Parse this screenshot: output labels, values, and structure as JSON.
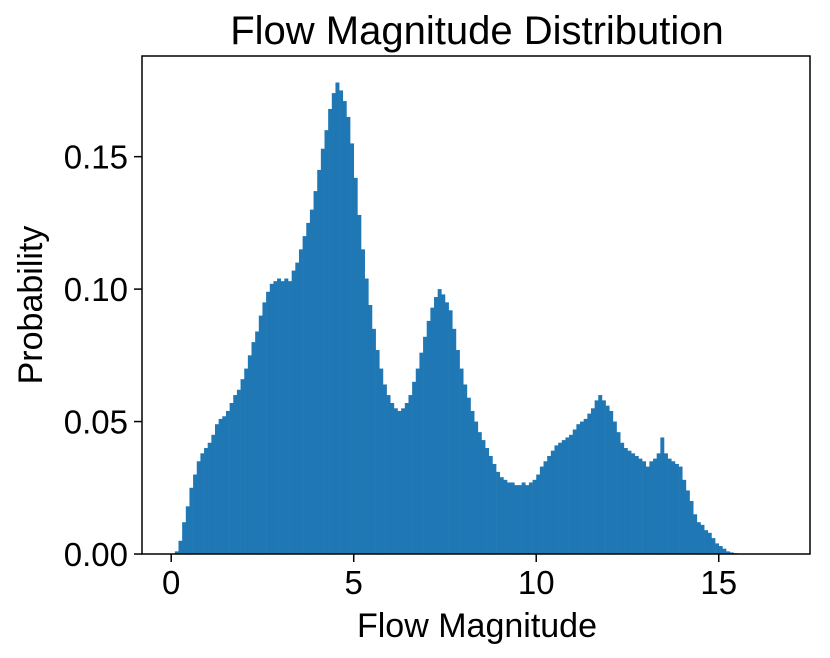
{
  "chart_data": {
    "type": "bar",
    "title": "Flow Magnitude Distribution",
    "xlabel": "Flow Magnitude",
    "ylabel": "Probability",
    "xlim": [
      -0.8,
      17.5
    ],
    "ylim": [
      0,
      0.188
    ],
    "xticks": [
      0,
      5,
      10,
      15
    ],
    "xtick_labels": [
      "0",
      "5",
      "10",
      "15"
    ],
    "yticks": [
      0,
      0.05,
      0.1,
      0.15
    ],
    "ytick_labels": [
      "0.00",
      "0.05",
      "0.10",
      "0.15"
    ],
    "grid": false,
    "bar_color": "#1f77b4",
    "bin_width": 0.1,
    "x": [
      0.0,
      0.1,
      0.2,
      0.3,
      0.4,
      0.5,
      0.6,
      0.7,
      0.8,
      0.9,
      1.0,
      1.1,
      1.2,
      1.3,
      1.4,
      1.5,
      1.6,
      1.7,
      1.8,
      1.9,
      2.0,
      2.1,
      2.2,
      2.3,
      2.4,
      2.5,
      2.6,
      2.7,
      2.8,
      2.9,
      3.0,
      3.1,
      3.2,
      3.3,
      3.4,
      3.5,
      3.6,
      3.7,
      3.8,
      3.9,
      4.0,
      4.1,
      4.2,
      4.3,
      4.4,
      4.5,
      4.6,
      4.7,
      4.8,
      4.9,
      5.0,
      5.1,
      5.2,
      5.3,
      5.4,
      5.5,
      5.6,
      5.7,
      5.8,
      5.9,
      6.0,
      6.1,
      6.2,
      6.3,
      6.4,
      6.5,
      6.6,
      6.7,
      6.8,
      6.9,
      7.0,
      7.1,
      7.2,
      7.3,
      7.4,
      7.5,
      7.6,
      7.7,
      7.8,
      7.9,
      8.0,
      8.1,
      8.2,
      8.3,
      8.4,
      8.5,
      8.6,
      8.7,
      8.8,
      8.9,
      9.0,
      9.1,
      9.2,
      9.3,
      9.4,
      9.5,
      9.6,
      9.7,
      9.8,
      9.9,
      10.0,
      10.1,
      10.2,
      10.3,
      10.4,
      10.5,
      10.6,
      10.7,
      10.8,
      10.9,
      11.0,
      11.1,
      11.2,
      11.3,
      11.4,
      11.5,
      11.6,
      11.7,
      11.8,
      11.9,
      12.0,
      12.1,
      12.2,
      12.3,
      12.4,
      12.5,
      12.6,
      12.7,
      12.8,
      12.9,
      13.0,
      13.1,
      13.2,
      13.3,
      13.4,
      13.5,
      13.6,
      13.7,
      13.8,
      13.9,
      14.0,
      14.1,
      14.2,
      14.3,
      14.4,
      14.5,
      14.6,
      14.7,
      14.8,
      14.9,
      15.0,
      15.1,
      15.2,
      15.3,
      15.4,
      15.5,
      15.6,
      15.7,
      15.8,
      15.9,
      16.0,
      16.1,
      16.2,
      16.3,
      16.4,
      16.5
    ],
    "values": [
      0.0,
      0.001,
      0.005,
      0.012,
      0.018,
      0.025,
      0.03,
      0.035,
      0.038,
      0.04,
      0.042,
      0.045,
      0.049,
      0.051,
      0.052,
      0.054,
      0.057,
      0.06,
      0.062,
      0.066,
      0.07,
      0.075,
      0.08,
      0.084,
      0.09,
      0.095,
      0.099,
      0.102,
      0.103,
      0.104,
      0.103,
      0.104,
      0.103,
      0.107,
      0.11,
      0.115,
      0.12,
      0.125,
      0.13,
      0.137,
      0.145,
      0.153,
      0.16,
      0.168,
      0.174,
      0.178,
      0.175,
      0.171,
      0.165,
      0.155,
      0.142,
      0.128,
      0.115,
      0.104,
      0.094,
      0.085,
      0.077,
      0.07,
      0.064,
      0.06,
      0.057,
      0.055,
      0.054,
      0.055,
      0.057,
      0.06,
      0.065,
      0.07,
      0.076,
      0.082,
      0.088,
      0.093,
      0.097,
      0.1,
      0.098,
      0.095,
      0.092,
      0.085,
      0.077,
      0.07,
      0.064,
      0.059,
      0.054,
      0.05,
      0.046,
      0.043,
      0.04,
      0.037,
      0.034,
      0.031,
      0.029,
      0.028,
      0.027,
      0.027,
      0.026,
      0.026,
      0.027,
      0.026,
      0.027,
      0.028,
      0.03,
      0.033,
      0.035,
      0.037,
      0.039,
      0.041,
      0.042,
      0.043,
      0.044,
      0.045,
      0.047,
      0.049,
      0.05,
      0.051,
      0.053,
      0.055,
      0.058,
      0.06,
      0.058,
      0.056,
      0.054,
      0.05,
      0.046,
      0.042,
      0.04,
      0.039,
      0.038,
      0.037,
      0.036,
      0.035,
      0.033,
      0.035,
      0.036,
      0.038,
      0.044,
      0.038,
      0.036,
      0.035,
      0.034,
      0.033,
      0.028,
      0.024,
      0.02,
      0.015,
      0.012,
      0.011,
      0.009,
      0.008,
      0.006,
      0.004,
      0.003,
      0.002,
      0.001,
      0.0006,
      0.0003,
      0.0002,
      0.0001,
      0.0,
      0.0,
      0.0,
      0.0,
      0.0,
      0.0,
      0.0,
      0.0,
      0.0
    ]
  }
}
